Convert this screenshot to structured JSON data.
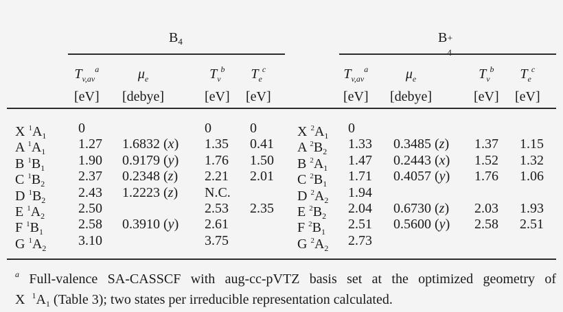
{
  "table": {
    "groups": [
      {
        "label": "B",
        "sub": "4",
        "sup": ""
      },
      {
        "label": "B",
        "sub": "4",
        "sup": "+"
      }
    ],
    "columns": [
      {
        "symbol": "T",
        "sub": "v,av",
        "note": "a",
        "unit": "[eV]"
      },
      {
        "symbol": "μ",
        "sub": "e",
        "note": "",
        "unit": "[debye]"
      },
      {
        "symbol": "T",
        "sub": "v",
        "note": "b",
        "unit": "[eV]"
      },
      {
        "symbol": "T",
        "sub": "e",
        "note": "c",
        "unit": "[eV]"
      }
    ],
    "neutral_rows": [
      {
        "letter": "X",
        "mult": "1",
        "sym": "A",
        "symsub": "1",
        "tvav": "0",
        "mu": "",
        "axis": "",
        "tv": "0",
        "te": "0"
      },
      {
        "letter": "A",
        "mult": "1",
        "sym": "A",
        "symsub": "1",
        "tvav": "1.27",
        "mu": "1.6832",
        "axis": "x",
        "tv": "1.35",
        "te": "0.41"
      },
      {
        "letter": "B",
        "mult": "1",
        "sym": "B",
        "symsub": "1",
        "tvav": "1.90",
        "mu": "0.9179",
        "axis": "y",
        "tv": "1.76",
        "te": "1.50"
      },
      {
        "letter": "C",
        "mult": "1",
        "sym": "B",
        "symsub": "2",
        "tvav": "2.37",
        "mu": "0.2348",
        "axis": "z",
        "tv": "2.21",
        "te": "2.01"
      },
      {
        "letter": "D",
        "mult": "1",
        "sym": "B",
        "symsub": "2",
        "tvav": "2.43",
        "mu": "1.2223",
        "axis": "z",
        "tv": "N.C.",
        "te": ""
      },
      {
        "letter": "E",
        "mult": "1",
        "sym": "A",
        "symsub": "2",
        "tvav": "2.50",
        "mu": "",
        "axis": "",
        "tv": "2.53",
        "te": "2.35"
      },
      {
        "letter": "F",
        "mult": "1",
        "sym": "B",
        "symsub": "1",
        "tvav": "2.58",
        "mu": "0.3910",
        "axis": "y",
        "tv": "2.61",
        "te": ""
      },
      {
        "letter": "G",
        "mult": "1",
        "sym": "A",
        "symsub": "2",
        "tvav": "3.10",
        "mu": "",
        "axis": "",
        "tv": "3.75",
        "te": ""
      }
    ],
    "cation_rows": [
      {
        "letter": "X",
        "mult": "2",
        "sym": "A",
        "symsub": "1",
        "tvav": "0",
        "mu": "",
        "axis": "",
        "tv": "",
        "te": ""
      },
      {
        "letter": "A",
        "mult": "2",
        "sym": "B",
        "symsub": "2",
        "tvav": "1.33",
        "mu": "0.3485",
        "axis": "z",
        "tv": "1.37",
        "te": "1.15"
      },
      {
        "letter": "B",
        "mult": "2",
        "sym": "A",
        "symsub": "1",
        "tvav": "1.47",
        "mu": "0.2443",
        "axis": "x",
        "tv": "1.52",
        "te": "1.32"
      },
      {
        "letter": "C",
        "mult": "2",
        "sym": "B",
        "symsub": "1",
        "tvav": "1.71",
        "mu": "0.4057",
        "axis": "y",
        "tv": "1.76",
        "te": "1.06"
      },
      {
        "letter": "D",
        "mult": "2",
        "sym": "A",
        "symsub": "2",
        "tvav": "1.94",
        "mu": "",
        "axis": "",
        "tv": "",
        "te": ""
      },
      {
        "letter": "E",
        "mult": "2",
        "sym": "B",
        "symsub": "2",
        "tvav": "2.04",
        "mu": "0.6730",
        "axis": "z",
        "tv": "2.03",
        "te": "1.93"
      },
      {
        "letter": "F",
        "mult": "2",
        "sym": "B",
        "symsub": "1",
        "tvav": "2.51",
        "mu": "0.5600",
        "axis": "y",
        "tv": "2.58",
        "te": "2.51"
      },
      {
        "letter": "G",
        "mult": "2",
        "sym": "A",
        "symsub": "2",
        "tvav": "2.73",
        "mu": "",
        "axis": "",
        "tv": "",
        "te": ""
      }
    ]
  },
  "footnote": {
    "mark": "a",
    "line1": "Full-valence SA-CASSCF with aug-cc-pVTZ basis set at the optimized geometry of",
    "line2_pre": "X",
    "line2_mult": "1",
    "line2_sym": "A",
    "line2_symsub": "1",
    "line2_post": "(Table 3); two states per irreducible representation calculated."
  }
}
